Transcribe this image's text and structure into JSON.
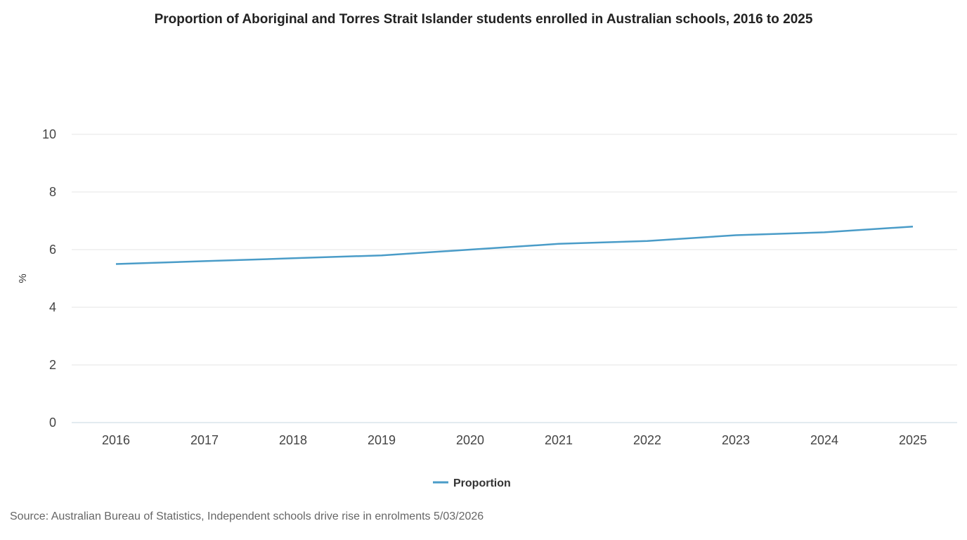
{
  "chart_data": {
    "type": "line",
    "title": "Proportion of Aboriginal and Torres Strait Islander students enrolled in Australian schools, 2016 to 2025",
    "xlabel": "",
    "ylabel": "%",
    "categories": [
      "2016",
      "2017",
      "2018",
      "2019",
      "2020",
      "2021",
      "2022",
      "2023",
      "2024",
      "2025"
    ],
    "series": [
      {
        "name": "Proportion",
        "color": "#4a9cc8",
        "values": [
          5.5,
          5.6,
          5.7,
          5.8,
          6.0,
          6.2,
          6.3,
          6.5,
          6.6,
          6.8
        ]
      }
    ],
    "ylim": [
      0,
      10
    ],
    "yticks": [
      "0",
      "2",
      "4",
      "6",
      "8",
      "10"
    ],
    "grid": true,
    "legend_position": "bottom"
  },
  "source": "Source: Australian Bureau of Statistics, Independent schools drive rise in enrolments 5/03/2026"
}
